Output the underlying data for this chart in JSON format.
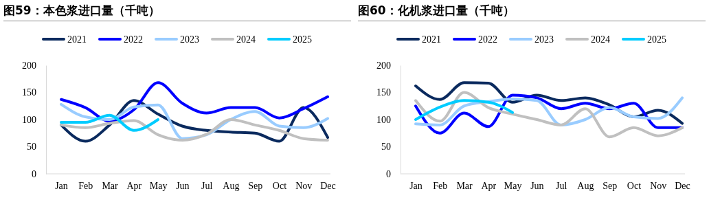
{
  "chart_data": [
    {
      "type": "line",
      "title": "图59：本色浆进口量（千吨）",
      "categories": [
        "Jan",
        "Feb",
        "Mar",
        "Apr",
        "May",
        "Jun",
        "Jul",
        "Aug",
        "Sep",
        "Oct",
        "Nov",
        "Dec"
      ],
      "ylim": [
        0,
        200
      ],
      "yticks": [
        0,
        50,
        100,
        150,
        200
      ],
      "legend": "top",
      "series": [
        {
          "name": "2021",
          "color": "#0a2a5e",
          "values": [
            90,
            60,
            90,
            135,
            110,
            88,
            80,
            77,
            75,
            60,
            122,
            67
          ]
        },
        {
          "name": "2022",
          "color": "#0000ff",
          "values": [
            137,
            122,
            97,
            118,
            168,
            130,
            112,
            122,
            122,
            103,
            120,
            142
          ]
        },
        {
          "name": "2023",
          "color": "#99ccff",
          "values": [
            128,
            105,
            100,
            123,
            127,
            65,
            72,
            100,
            115,
            88,
            85,
            102
          ]
        },
        {
          "name": "2024",
          "color": "#c0c0c0",
          "values": [
            90,
            85,
            93,
            98,
            72,
            62,
            73,
            100,
            90,
            80,
            65,
            62
          ]
        },
        {
          "name": "2025",
          "color": "#00ccff",
          "values": [
            95,
            95,
            108,
            80,
            100,
            null,
            null,
            null,
            null,
            null,
            null,
            null
          ]
        }
      ]
    },
    {
      "type": "line",
      "title": "图60：化机浆进口量（千吨）",
      "categories": [
        "Jan",
        "Feb",
        "Mar",
        "Apr",
        "May",
        "Jun",
        "Jul",
        "Aug",
        "Sep",
        "Oct",
        "Nov",
        "Dec"
      ],
      "ylim": [
        0,
        200
      ],
      "yticks": [
        0,
        50,
        100,
        150,
        200
      ],
      "legend": "top",
      "series": [
        {
          "name": "2021",
          "color": "#0a2a5e",
          "values": [
            162,
            137,
            168,
            167,
            132,
            145,
            135,
            140,
            127,
            105,
            117,
            93
          ]
        },
        {
          "name": "2022",
          "color": "#0000ff",
          "values": [
            125,
            75,
            112,
            87,
            145,
            140,
            120,
            130,
            120,
            130,
            85,
            85
          ]
        },
        {
          "name": "2023",
          "color": "#99ccff",
          "values": [
            92,
            90,
            125,
            133,
            138,
            135,
            90,
            100,
            122,
            105,
            102,
            140
          ]
        },
        {
          "name": "2024",
          "color": "#c0c0c0",
          "values": [
            135,
            97,
            150,
            122,
            110,
            100,
            90,
            120,
            68,
            85,
            70,
            85
          ]
        },
        {
          "name": "2025",
          "color": "#00ccff",
          "values": [
            100,
            123,
            135,
            132,
            113,
            null,
            null,
            null,
            null,
            null,
            null,
            null
          ]
        }
      ]
    }
  ]
}
